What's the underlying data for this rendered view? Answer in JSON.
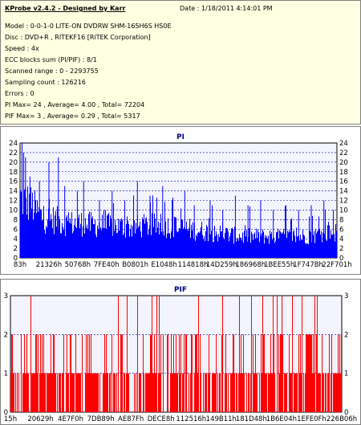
{
  "header": {
    "title": "KProbe v2.4.2 - Designed by Karr",
    "date": "Date : 1/18/2011 4:14:01 PM",
    "model": "Model : 0-0-1-0 LITE-ON DVDRW SHM-165H6S HS0E",
    "disc": "Disc : DVD+R , RITEKF16 [RiTEK Corporation]",
    "speed": "Speed : 4x",
    "ecc": "ECC blocks sum (PI/PIF) : 8/1",
    "range": "Scanned range : 0 - 2293755",
    "sampling": "Sampling count : 126216",
    "errors": "Errors : 0",
    "pi_stats": "PI Max= 24 , Average= 4.00 , Total= 72204",
    "pif_stats": "PIF Max= 3 , Average= 0.29 , Total= 5317"
  },
  "colors": {
    "pi_bar": "#0000ff",
    "pif_bar": "#ff0000",
    "title_text": "#000080",
    "plot_bg": "#f4f4ff",
    "grid_dashed": "#0000a0"
  },
  "chart_data": [
    {
      "type": "bar",
      "title": "PI",
      "ylim": [
        0,
        24
      ],
      "yticks": [
        0,
        2,
        4,
        6,
        8,
        10,
        12,
        14,
        16,
        18,
        20,
        22,
        24
      ],
      "grid": "dashed horizontal",
      "x_tick_labels": [
        "83h",
        "21326h",
        "50768h",
        "7FE40h",
        "B0801h",
        "E1048h",
        "114818h",
        "14D259h",
        "186968h",
        "1BEE55h",
        "1F747Bh",
        "22F701h"
      ],
      "envelope": [
        [
          0.0,
          14
        ],
        [
          0.02,
          13
        ],
        [
          0.04,
          12
        ],
        [
          0.06,
          10
        ],
        [
          0.08,
          9
        ],
        [
          0.1,
          9
        ],
        [
          0.15,
          8
        ],
        [
          0.2,
          8
        ],
        [
          0.25,
          7.5
        ],
        [
          0.3,
          7.5
        ],
        [
          0.35,
          7
        ],
        [
          0.4,
          7.5
        ],
        [
          0.45,
          7.5
        ],
        [
          0.5,
          7
        ],
        [
          0.55,
          6.5
        ],
        [
          0.6,
          6
        ],
        [
          0.65,
          5.5
        ],
        [
          0.7,
          5
        ],
        [
          0.75,
          5
        ],
        [
          0.8,
          5
        ],
        [
          0.85,
          5
        ],
        [
          0.9,
          5
        ],
        [
          0.95,
          5.5
        ],
        [
          1.0,
          6
        ]
      ],
      "spikes": [
        [
          0.005,
          24
        ],
        [
          0.01,
          22
        ],
        [
          0.016,
          21
        ],
        [
          0.03,
          17
        ],
        [
          0.06,
          16
        ],
        [
          0.09,
          20
        ],
        [
          0.12,
          21
        ],
        [
          0.14,
          15
        ],
        [
          0.18,
          14
        ],
        [
          0.2,
          16
        ],
        [
          0.25,
          12
        ],
        [
          0.29,
          14
        ],
        [
          0.33,
          12
        ],
        [
          0.37,
          16
        ],
        [
          0.41,
          13
        ],
        [
          0.45,
          15
        ],
        [
          0.48,
          12
        ],
        [
          0.52,
          14
        ],
        [
          0.55,
          11
        ],
        [
          0.6,
          12
        ],
        [
          0.64,
          10
        ],
        [
          0.68,
          13
        ],
        [
          0.72,
          11
        ],
        [
          0.76,
          12
        ],
        [
          0.8,
          10
        ],
        [
          0.84,
          11
        ],
        [
          0.88,
          10
        ],
        [
          0.92,
          11
        ],
        [
          0.96,
          12
        ],
        [
          0.99,
          10
        ]
      ]
    },
    {
      "type": "bar",
      "title": "PIF",
      "ylim": [
        0,
        3
      ],
      "yticks": [
        0,
        1,
        2,
        3
      ],
      "grid": "dashed horizontal",
      "x_tick_labels": [
        "15h",
        "20629h",
        "4E7F0h",
        "7DB89h",
        "AE87Fh",
        "DECE8h",
        "112516h",
        "149B11h",
        "181D48h",
        "1B6E04h",
        "1EFE0Fh",
        "226B06h"
      ],
      "level_distribution": {
        "level1_fraction": 0.5,
        "level2_fraction": 0.2,
        "level3_fraction": 0.04
      }
    }
  ]
}
